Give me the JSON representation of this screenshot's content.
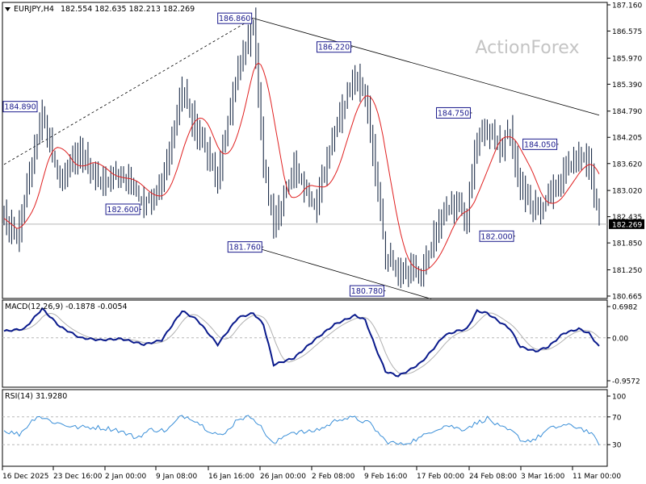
{
  "header": {
    "symbol_label": "EURJPY,H4",
    "ohlc": "182.554 182.635 182.213 182.269",
    "watermark": "ActionForex"
  },
  "colors": {
    "candle": "#1f2f4a",
    "ma": "#e02020",
    "macd": "#0a1a8c",
    "signal": "#b0b0b0",
    "rsi": "#3a8fd8",
    "channel": "#000000",
    "grid": "#b8b8b8",
    "label_box": "#1a1a8c"
  },
  "chart_data": [
    {
      "type": "candlestick",
      "panel": "price",
      "title": "EURJPY,H4",
      "ylim": [
        180.665,
        187.16
      ],
      "y_ticks": [
        "187.160",
        "186.575",
        "185.970",
        "185.390",
        "184.790",
        "184.205",
        "183.620",
        "183.020",
        "182.435",
        "181.850",
        "181.250",
        "180.665"
      ],
      "last_price": "182.269",
      "x_labels": [
        "16 Dec 2025",
        "23 Dec 16:00",
        "2 Jan 00:00",
        "9 Jan 08:00",
        "16 Jan 16:00",
        "26 Jan 00:00",
        "2 Feb 08:00",
        "9 Feb 16:00",
        "17 Feb 00:00",
        "24 Feb 08:00",
        "3 Mar 16:00",
        "11 Mar 00:00"
      ],
      "anchors": [
        [
          0,
          182.4
        ],
        [
          5,
          181.95
        ],
        [
          15,
          184.7
        ],
        [
          22,
          183.2
        ],
        [
          30,
          183.9
        ],
        [
          38,
          183.2
        ],
        [
          46,
          183.4
        ],
        [
          55,
          182.7
        ],
        [
          62,
          183.1
        ],
        [
          70,
          185.2
        ],
        [
          76,
          184.3
        ],
        [
          84,
          183.3
        ],
        [
          92,
          185.8
        ],
        [
          98,
          186.7
        ],
        [
          102,
          183.6
        ],
        [
          106,
          182.2
        ],
        [
          114,
          183.5
        ],
        [
          122,
          182.7
        ],
        [
          130,
          184.3
        ],
        [
          138,
          185.6
        ],
        [
          142,
          185.1
        ],
        [
          146,
          183.5
        ],
        [
          150,
          181.6
        ],
        [
          155,
          181.2
        ],
        [
          160,
          181.3
        ],
        [
          164,
          181.1
        ],
        [
          168,
          181.8
        ],
        [
          173,
          182.6
        ],
        [
          178,
          182.7
        ],
        [
          182,
          182.4
        ],
        [
          186,
          184.2
        ],
        [
          190,
          184.4
        ],
        [
          195,
          184.0
        ],
        [
          199,
          184.3
        ],
        [
          203,
          183.1
        ],
        [
          209,
          182.5
        ],
        [
          214,
          182.8
        ],
        [
          220,
          183.4
        ],
        [
          226,
          183.8
        ],
        [
          230,
          183.6
        ],
        [
          234,
          182.3
        ]
      ],
      "series": [
        {
          "name": "",
          "kind": "moving-average",
          "color": "#e02020"
        }
      ],
      "levels": [
        {
          "value": 186.86,
          "label": "186.860",
          "bar": 98
        },
        {
          "value": 186.22,
          "label": "186.220",
          "bar": 137
        },
        {
          "value": 184.89,
          "label": "184.890",
          "bar": 12
        },
        {
          "value": 184.75,
          "label": "184.750",
          "bar": 184
        },
        {
          "value": 184.05,
          "label": "184.050",
          "bar": 218
        },
        {
          "value": 182.6,
          "label": "182.600",
          "bar": 54
        },
        {
          "value": 182.0,
          "label": "182.000",
          "bar": 201
        },
        {
          "value": 181.76,
          "label": "181.760",
          "bar": 102
        },
        {
          "value": 180.78,
          "label": "180.780",
          "bar": 150
        }
      ],
      "trendlines": [
        {
          "from": [
            0,
            183.6
          ],
          "to": [
            98,
            186.86
          ],
          "style": "dashed"
        },
        {
          "from": [
            98,
            186.86
          ],
          "to": [
            234,
            184.7
          ],
          "style": "solid"
        },
        {
          "from": [
            98,
            181.76
          ],
          "to": [
            168,
            180.6
          ],
          "style": "solid"
        }
      ]
    },
    {
      "type": "line",
      "panel": "macd",
      "title": "MACD(12,26,9) -0.1878 -0.0054",
      "ylim": [
        -0.9572,
        0.6982
      ],
      "y_ticks": [
        "0.6982",
        "0.00",
        "-0.9572"
      ],
      "series": [
        {
          "name": "",
          "kind": "macd",
          "color": "#0a1a8c",
          "width": 2
        },
        {
          "name": "",
          "kind": "signal",
          "color": "#b0b0b0",
          "width": 1
        }
      ],
      "anchors": [
        [
          0,
          0.15
        ],
        [
          8,
          0.2
        ],
        [
          15,
          0.65
        ],
        [
          22,
          0.25
        ],
        [
          30,
          0.0
        ],
        [
          38,
          -0.05
        ],
        [
          46,
          -0.02
        ],
        [
          55,
          -0.15
        ],
        [
          62,
          -0.05
        ],
        [
          70,
          0.6
        ],
        [
          76,
          0.4
        ],
        [
          84,
          -0.15
        ],
        [
          92,
          0.45
        ],
        [
          98,
          0.55
        ],
        [
          102,
          0.3
        ],
        [
          106,
          -0.6
        ],
        [
          114,
          -0.45
        ],
        [
          122,
          -0.05
        ],
        [
          130,
          0.3
        ],
        [
          138,
          0.5
        ],
        [
          142,
          0.4
        ],
        [
          146,
          -0.2
        ],
        [
          150,
          -0.75
        ],
        [
          155,
          -0.85
        ],
        [
          160,
          -0.7
        ],
        [
          164,
          -0.55
        ],
        [
          168,
          -0.3
        ],
        [
          173,
          0.05
        ],
        [
          178,
          0.15
        ],
        [
          182,
          0.2
        ],
        [
          186,
          0.6
        ],
        [
          190,
          0.55
        ],
        [
          195,
          0.35
        ],
        [
          199,
          0.2
        ],
        [
          203,
          -0.2
        ],
        [
          209,
          -0.3
        ],
        [
          214,
          -0.2
        ],
        [
          220,
          0.1
        ],
        [
          226,
          0.2
        ],
        [
          230,
          0.1
        ],
        [
          234,
          -0.2
        ]
      ]
    },
    {
      "type": "line",
      "panel": "rsi",
      "title": "RSI(14) 31.9280",
      "ylim": [
        0,
        100
      ],
      "y_ticks": [
        "100",
        "70",
        "30",
        "0"
      ],
      "series": [
        {
          "name": "",
          "kind": "rsi",
          "color": "#3a8fd8",
          "width": 1
        }
      ],
      "anchors": [
        [
          0,
          50
        ],
        [
          6,
          45
        ],
        [
          13,
          72
        ],
        [
          20,
          62
        ],
        [
          28,
          55
        ],
        [
          36,
          55
        ],
        [
          44,
          52
        ],
        [
          52,
          40
        ],
        [
          58,
          52
        ],
        [
          64,
          50
        ],
        [
          70,
          72
        ],
        [
          74,
          68
        ],
        [
          80,
          52
        ],
        [
          86,
          42
        ],
        [
          92,
          68
        ],
        [
          98,
          70
        ],
        [
          102,
          50
        ],
        [
          106,
          30
        ],
        [
          112,
          48
        ],
        [
          120,
          48
        ],
        [
          126,
          55
        ],
        [
          132,
          68
        ],
        [
          138,
          68
        ],
        [
          144,
          60
        ],
        [
          150,
          35
        ],
        [
          156,
          30
        ],
        [
          160,
          35
        ],
        [
          164,
          40
        ],
        [
          168,
          50
        ],
        [
          174,
          58
        ],
        [
          180,
          52
        ],
        [
          184,
          58
        ],
        [
          190,
          68
        ],
        [
          195,
          55
        ],
        [
          200,
          48
        ],
        [
          204,
          35
        ],
        [
          209,
          38
        ],
        [
          214,
          52
        ],
        [
          220,
          58
        ],
        [
          226,
          55
        ],
        [
          230,
          48
        ],
        [
          234,
          32
        ]
      ]
    }
  ]
}
